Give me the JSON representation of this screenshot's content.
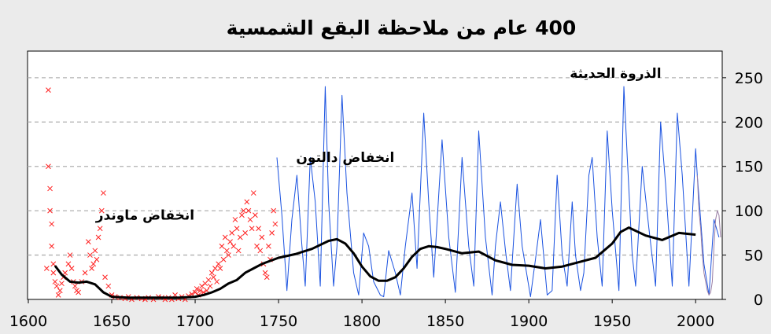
{
  "chart_data": {
    "type": "line",
    "title": "400 عام من ملاحظة البقع الشمسية",
    "xlabel": "",
    "ylabel": "",
    "xlim": [
      1600,
      2015
    ],
    "ylim": [
      0,
      280
    ],
    "x_ticks": [
      1600,
      1650,
      1700,
      1750,
      1800,
      1850,
      1900,
      1950,
      2000
    ],
    "y_ticks": [
      0,
      50,
      100,
      150,
      200,
      250
    ],
    "y_axis_side": "right",
    "grid": "horizontal dashed",
    "annotations": [
      {
        "text": "انخفاض ماوندر",
        "x": 1670,
        "y": 90
      },
      {
        "text": "انخفاض دالتون",
        "x": 1790,
        "y": 155
      },
      {
        "text": "الذروة الحديثة",
        "x": 1952,
        "y": 250
      }
    ],
    "series": [
      {
        "type": "scatter",
        "color": "#ff2020",
        "x": [
          1611,
          1612,
          1612,
          1613,
          1613,
          1614,
          1614,
          1615,
          1615,
          1616,
          1617,
          1618,
          1619,
          1620,
          1621,
          1622,
          1624,
          1625,
          1626,
          1627,
          1628,
          1629,
          1630,
          1632,
          1634,
          1636,
          1637,
          1638,
          1639,
          1640,
          1641,
          1642,
          1643,
          1644,
          1645,
          1646,
          1648,
          1650,
          1652,
          1655,
          1658,
          1660,
          1662,
          1665,
          1668,
          1670,
          1672,
          1675,
          1678,
          1680,
          1682,
          1684,
          1686,
          1688,
          1690,
          1692,
          1694,
          1696,
          1698,
          1700,
          1701,
          1702,
          1703,
          1704,
          1705,
          1706,
          1707,
          1708,
          1709,
          1710,
          1711,
          1712,
          1713,
          1714,
          1715,
          1716,
          1717,
          1718,
          1719,
          1720,
          1721,
          1722,
          1723,
          1724,
          1725,
          1726,
          1727,
          1728,
          1729,
          1730,
          1731,
          1732,
          1733,
          1734,
          1735,
          1736,
          1737,
          1738,
          1739,
          1740,
          1741,
          1742,
          1743,
          1744,
          1745,
          1746,
          1747,
          1748
        ],
        "y": [
          35,
          150,
          236,
          125,
          100,
          85,
          60,
          40,
          30,
          20,
          15,
          5,
          10,
          18,
          25,
          30,
          40,
          50,
          35,
          20,
          15,
          10,
          8,
          20,
          30,
          65,
          50,
          35,
          40,
          55,
          45,
          70,
          80,
          100,
          120,
          25,
          15,
          5,
          3,
          2,
          1,
          3,
          0,
          2,
          1,
          0,
          2,
          0,
          3,
          2,
          0,
          2,
          0,
          5,
          1,
          3,
          0,
          4,
          6,
          8,
          12,
          5,
          10,
          15,
          8,
          18,
          10,
          22,
          15,
          30,
          25,
          35,
          20,
          40,
          35,
          60,
          45,
          70,
          55,
          50,
          65,
          75,
          60,
          90,
          80,
          55,
          70,
          95,
          100,
          75,
          110,
          100,
          90,
          80,
          120,
          95,
          60,
          80,
          55,
          70,
          40,
          30,
          25,
          60,
          45,
          75,
          100,
          85
        ]
      },
      {
        "type": "line",
        "color": "#1a52e0",
        "x": [
          1749,
          1752,
          1755,
          1758,
          1761,
          1764,
          1766,
          1769,
          1772,
          1775,
          1778,
          1780,
          1783,
          1785,
          1788,
          1791,
          1795,
          1798,
          1801,
          1804,
          1807,
          1811,
          1813,
          1816,
          1820,
          1823,
          1826,
          1830,
          1833,
          1837,
          1840,
          1843,
          1848,
          1852,
          1856,
          1860,
          1864,
          1867,
          1870,
          1874,
          1878,
          1880,
          1883,
          1886,
          1889,
          1893,
          1896,
          1901,
          1904,
          1907,
          1911,
          1914,
          1917,
          1920,
          1923,
          1926,
          1928,
          1931,
          1933,
          1936,
          1938,
          1941,
          1944,
          1947,
          1950,
          1954,
          1957,
          1959,
          1962,
          1964,
          1968,
          1972,
          1976,
          1979,
          1982,
          1986,
          1989,
          1992,
          1996,
          2000,
          2001,
          2005,
          2008,
          2011,
          2014
        ],
        "y": [
          160,
          95,
          10,
          90,
          140,
          60,
          15,
          160,
          110,
          15,
          240,
          110,
          15,
          60,
          230,
          120,
          30,
          5,
          75,
          60,
          20,
          5,
          3,
          55,
          30,
          5,
          60,
          120,
          35,
          210,
          110,
          25,
          180,
          70,
          8,
          160,
          60,
          15,
          190,
          70,
          5,
          60,
          110,
          55,
          10,
          130,
          60,
          3,
          45,
          90,
          5,
          10,
          140,
          50,
          15,
          110,
          50,
          10,
          30,
          140,
          160,
          70,
          15,
          190,
          100,
          10,
          240,
          160,
          50,
          15,
          150,
          80,
          15,
          200,
          130,
          15,
          210,
          140,
          15,
          170,
          140,
          40,
          5,
          90,
          70
        ]
      },
      {
        "type": "line",
        "color": "#000000",
        "x": [
          1616,
          1620,
          1625,
          1630,
          1635,
          1640,
          1645,
          1650,
          1660,
          1670,
          1680,
          1690,
          1700,
          1705,
          1710,
          1715,
          1720,
          1725,
          1730,
          1735,
          1740,
          1750,
          1760,
          1770,
          1780,
          1785,
          1790,
          1795,
          1800,
          1805,
          1810,
          1815,
          1820,
          1825,
          1830,
          1835,
          1840,
          1845,
          1850,
          1860,
          1870,
          1880,
          1890,
          1900,
          1910,
          1920,
          1930,
          1940,
          1950,
          1955,
          1960,
          1970,
          1980,
          1990,
          2000
        ],
        "y": [
          38,
          28,
          20,
          19,
          20,
          17,
          8,
          3,
          2,
          2,
          2,
          2,
          3,
          5,
          8,
          12,
          18,
          22,
          30,
          35,
          40,
          47,
          51,
          57,
          66,
          68,
          63,
          52,
          37,
          26,
          21,
          21,
          25,
          35,
          48,
          57,
          60,
          59,
          57,
          52,
          54,
          44,
          39,
          38,
          35,
          37,
          42,
          47,
          63,
          76,
          81,
          72,
          67,
          75,
          73
        ]
      },
      {
        "type": "line",
        "color": "#9a7fa5",
        "x": [
          2001,
          2002,
          2003,
          2004,
          2005,
          2006,
          2007,
          2008,
          2009,
          2010,
          2011,
          2012,
          2013,
          2014,
          2015
        ],
        "y": [
          140,
          100,
          80,
          50,
          30,
          20,
          10,
          5,
          8,
          20,
          60,
          90,
          100,
          95,
          70
        ]
      }
    ]
  }
}
